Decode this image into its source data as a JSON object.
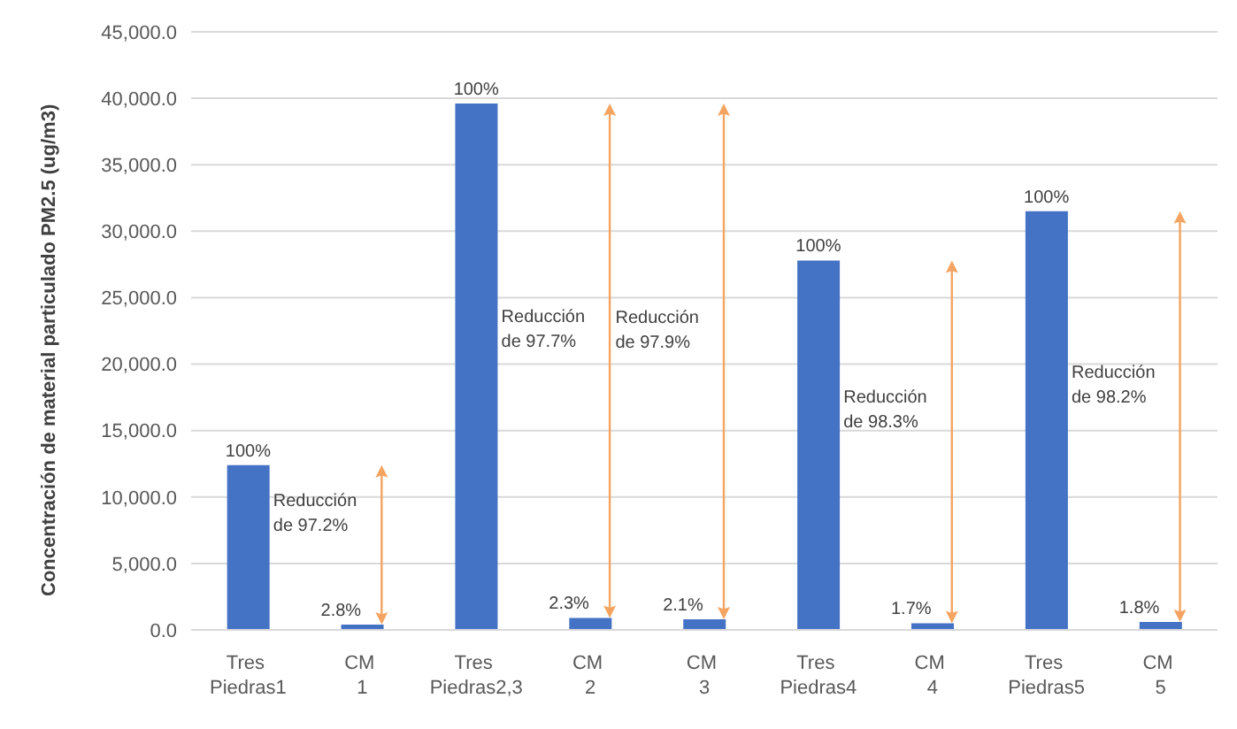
{
  "chart_data": {
    "type": "bar",
    "ylabel": "Concentración  de material particulado PM2.5 (ug/m3)",
    "categories": [
      "Tres Piedras1",
      "CM 1",
      "Tres Piedras2,3",
      "CM 2",
      "CM 3",
      "Tres Piedras4",
      "CM 4",
      "Tres Piedras5",
      "CM 5"
    ],
    "values": [
      12400,
      400,
      39600,
      900,
      800,
      27800,
      500,
      31500,
      600
    ],
    "color": "#4472c4",
    "ylim": [
      0,
      45000
    ],
    "yticks": [
      {
        "value": 0,
        "label": "0.0"
      },
      {
        "value": 5000,
        "label": "5,000.0"
      },
      {
        "value": 10000,
        "label": "10,000.0"
      },
      {
        "value": 15000,
        "label": "15,000.0"
      },
      {
        "value": 20000,
        "label": "20,000.0"
      },
      {
        "value": 25000,
        "label": "25,000.0"
      },
      {
        "value": 30000,
        "label": "30,000.0"
      },
      {
        "value": 35000,
        "label": "35,000.0"
      },
      {
        "value": 40000,
        "label": "40,000.0"
      },
      {
        "value": 45000,
        "label": "45,000.0"
      }
    ],
    "grid": "y",
    "annotations": [
      {
        "text": "100%",
        "x": "Tres Piedras1",
        "y": 12400
      },
      {
        "text": "2.8%",
        "x": "CM 1",
        "y": 400
      },
      {
        "text": "100%",
        "x": "Tres Piedras2,3",
        "y": 39600
      },
      {
        "text": "2.3%",
        "x": "CM 2",
        "y": 900
      },
      {
        "text": "2.1%",
        "x": "CM 3",
        "y": 800
      },
      {
        "text": "100%",
        "x": "Tres Piedras4",
        "y": 27800
      },
      {
        "text": "1.7%",
        "x": "CM 4",
        "y": 500
      },
      {
        "text": "100%",
        "x": "Tres Piedras5",
        "y": 31500
      },
      {
        "text": "1.8%",
        "x": "CM 5",
        "y": 600
      },
      "Reducción de 97.2%",
      "Reducción de 97.7%",
      "Reducción de 97.9%",
      "Reducción de 98.3%",
      "Reducción de 98.2%"
    ]
  }
}
